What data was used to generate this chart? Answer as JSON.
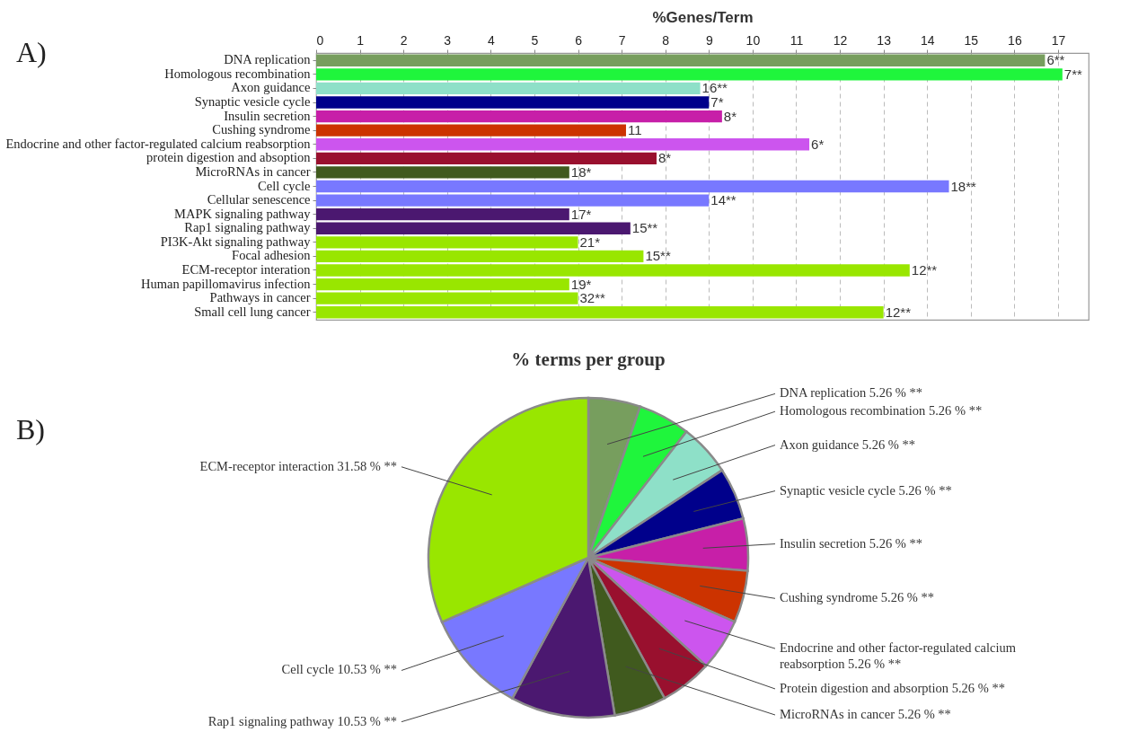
{
  "chart_data": [
    {
      "type": "bar",
      "orientation": "horizontal",
      "xlabel": "%Genes/Term",
      "annotations": [
        "A)",
        {
          "text": "6**",
          "x": 16.7,
          "y": "DNA replication"
        },
        {
          "text": "7**",
          "x": 17.1,
          "y": "Homologous recombination"
        },
        {
          "text": "16**",
          "x": 8.8,
          "y": "Axon guidance"
        },
        {
          "text": "7*",
          "x": 9.0,
          "y": "Synaptic vesicle cycle"
        },
        {
          "text": "8*",
          "x": 9.3,
          "y": "Insulin secretion"
        },
        {
          "text": "11",
          "x": 7.1,
          "y": "Cushing syndrome"
        },
        {
          "text": "6*",
          "x": 11.3,
          "y": "Endocrine and other factor-regulated calcium reabsorption"
        },
        {
          "text": "8*",
          "x": 7.8,
          "y": "protein digestion and absoption"
        },
        {
          "text": "18*",
          "x": 5.8,
          "y": "MicroRNAs in cancer"
        },
        {
          "text": "18**",
          "x": 14.5,
          "y": "Cell cycle"
        },
        {
          "text": "14**",
          "x": 9.0,
          "y": "Cellular senescence"
        },
        {
          "text": "17*",
          "x": 5.8,
          "y": "MAPK signaling pathway"
        },
        {
          "text": "15**",
          "x": 7.2,
          "y": "Rap1 signaling pathway"
        },
        {
          "text": "21*",
          "x": 6.0,
          "y": "PI3K-Akt signaling pathway"
        },
        {
          "text": "15**",
          "x": 7.5,
          "y": "Focal adhesion"
        },
        {
          "text": "12**",
          "x": 13.6,
          "y": "ECM-receptor interation"
        },
        {
          "text": "19*",
          "x": 5.8,
          "y": "Human papillomavirus infection"
        },
        {
          "text": "32**",
          "x": 6.0,
          "y": "Pathways in cancer"
        },
        {
          "text": "12**",
          "x": 13.0,
          "y": "Small cell lung cancer"
        }
      ],
      "categories": [
        "DNA replication",
        "Homologous recombination",
        "Axon guidance",
        "Synaptic vesicle cycle",
        "Insulin secretion",
        "Cushing syndrome",
        "Endocrine and other factor-regulated calcium reabsorption",
        "protein digestion and absoption",
        "MicroRNAs in cancer",
        "Cell cycle",
        "Cellular senescence",
        "MAPK signaling pathway",
        "Rap1 signaling pathway",
        "PI3K-Akt signaling pathway",
        "Focal adhesion",
        "ECM-receptor interation",
        "Human papillomavirus infection",
        "Pathways in cancer",
        "Small cell lung cancer"
      ],
      "values": [
        16.7,
        17.1,
        8.8,
        9.0,
        9.3,
        7.1,
        11.3,
        7.8,
        5.8,
        14.5,
        9.0,
        5.8,
        7.2,
        6.0,
        7.5,
        13.6,
        5.8,
        6.0,
        13.0
      ],
      "colors": [
        "#779e5e",
        "#1ff53c",
        "#8ee0c8",
        "#00008b",
        "#c71fa8",
        "#cc3300",
        "#cc55ee",
        "#99102e",
        "#405a1e",
        "#7878ff",
        "#7878ff",
        "#4b1870",
        "#4b1870",
        "#99e600",
        "#99e600",
        "#99e600",
        "#99e600",
        "#99e600",
        "#99e600"
      ],
      "xlim": [
        0,
        17.7
      ],
      "xticks": [
        0,
        1,
        2,
        3,
        4,
        5,
        6,
        7,
        8,
        9,
        10,
        11,
        12,
        13,
        14,
        15,
        16,
        17
      ],
      "grid": "x"
    },
    {
      "type": "pie",
      "title": "% terms per group",
      "annotations": [
        "B)"
      ],
      "categories": [
        "DNA replication",
        "Homologous recombination",
        "Axon guidance",
        "Synaptic vesicle cycle",
        "Insulin secretion",
        "Cushing syndrome",
        "Endocrine and other factor-regulated calcium reabsorption",
        "Protein digestion and absorption",
        "MicroRNAs in cancer",
        "Rap1 signaling pathway",
        "Cell cycle",
        "ECM-receptor interaction"
      ],
      "values": [
        5.26,
        5.26,
        5.26,
        5.26,
        5.26,
        5.26,
        5.26,
        5.26,
        5.26,
        10.53,
        10.53,
        31.58
      ],
      "colors": [
        "#779e5e",
        "#1ff53c",
        "#8ee0c8",
        "#00008b",
        "#c71fa8",
        "#cc3300",
        "#cc55ee",
        "#99102e",
        "#405a1e",
        "#4b1870",
        "#7878ff",
        "#99e600"
      ],
      "value_labels": [
        "5.26 % **",
        "5.26 % **",
        "5.26 % **",
        "5.26 % **",
        "5.26 % **",
        "5.26 % **",
        "5.26 % **",
        "5.26 % **",
        "5.26 % **",
        "10.53 % **",
        "10.53 % **",
        "31.58 % **"
      ]
    }
  ]
}
